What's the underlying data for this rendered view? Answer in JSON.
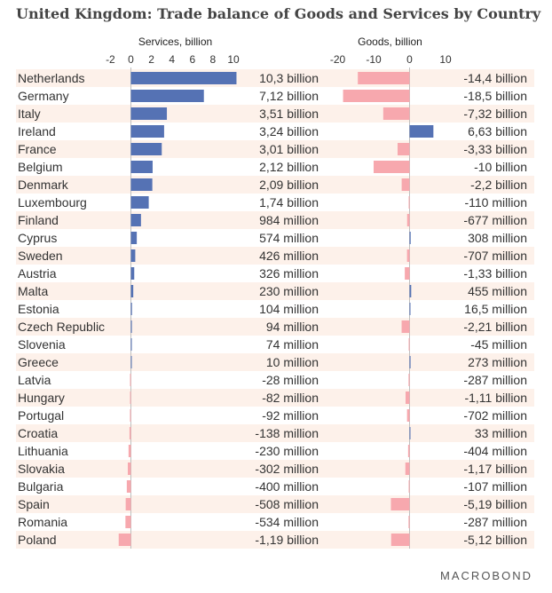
{
  "title": "United Kingdom: Trade balance of Goods and Services by Country",
  "brand": "MACROBOND",
  "colors": {
    "services": "#5572b4",
    "goods": "#f7a8ae",
    "row_band": "#fdf1ea",
    "axis": "#bfbfbf"
  },
  "chart_data": [
    {
      "type": "bar",
      "orientation": "horizontal",
      "title": "Services, billion",
      "xlim": [
        -2.5,
        11
      ],
      "ticks": [
        -2,
        0,
        2,
        4,
        6,
        8,
        10
      ],
      "categories": [
        "Netherlands",
        "Germany",
        "Italy",
        "Ireland",
        "France",
        "Belgium",
        "Denmark",
        "Luxembourg",
        "Finland",
        "Cyprus",
        "Sweden",
        "Austria",
        "Malta",
        "Estonia",
        "Czech Republic",
        "Slovenia",
        "Greece",
        "Latvia",
        "Hungary",
        "Portugal",
        "Croatia",
        "Lithuania",
        "Slovakia",
        "Bulgaria",
        "Spain",
        "Romania",
        "Poland"
      ],
      "values": [
        10.3,
        7.12,
        3.51,
        3.24,
        3.01,
        2.12,
        2.09,
        1.74,
        0.984,
        0.574,
        0.426,
        0.326,
        0.23,
        0.104,
        0.094,
        0.074,
        0.01,
        -0.028,
        -0.082,
        -0.092,
        -0.138,
        -0.23,
        -0.302,
        -0.4,
        -0.508,
        -0.534,
        -1.19
      ],
      "labels": [
        "10,3 billion",
        "7,12 billion",
        "3,51 billion",
        "3,24 billion",
        "3,01 billion",
        "2,12 billion",
        "2,09 billion",
        "1,74 billion",
        "984 million",
        "574 million",
        "426 million",
        "326 million",
        "230 million",
        "104 million",
        "94 million",
        "74 million",
        "10 million",
        "-28 million",
        "-82 million",
        "-92 million",
        "-138 million",
        "-230 million",
        "-302 million",
        "-400 million",
        "-508 million",
        "-534 million",
        "-1,19 billion"
      ]
    },
    {
      "type": "bar",
      "orientation": "horizontal",
      "title": "Goods, billion",
      "xlim": [
        -20.5,
        10
      ],
      "ticks": [
        -20,
        -10,
        0,
        10
      ],
      "categories": [
        "Netherlands",
        "Germany",
        "Italy",
        "Ireland",
        "France",
        "Belgium",
        "Denmark",
        "Luxembourg",
        "Finland",
        "Cyprus",
        "Sweden",
        "Austria",
        "Malta",
        "Estonia",
        "Czech Republic",
        "Slovenia",
        "Greece",
        "Latvia",
        "Hungary",
        "Portugal",
        "Croatia",
        "Lithuania",
        "Slovakia",
        "Bulgaria",
        "Spain",
        "Romania",
        "Poland"
      ],
      "values": [
        -14.4,
        -18.5,
        -7.32,
        6.63,
        -3.33,
        -10,
        -2.2,
        -0.11,
        -0.677,
        0.308,
        -0.707,
        -1.33,
        0.455,
        0.0165,
        -2.21,
        -0.045,
        0.273,
        -0.287,
        -1.11,
        -0.702,
        0.033,
        -0.404,
        -1.17,
        -0.107,
        -5.19,
        -0.287,
        -5.12
      ],
      "labels": [
        "-14,4 billion",
        "-18,5 billion",
        "-7,32 billion",
        "6,63 billion",
        "-3,33 billion",
        "-10 billion",
        "-2,2 billion",
        "-110 million",
        "-677 million",
        "308 million",
        "-707 million",
        "-1,33 billion",
        "455 million",
        "16,5 million",
        "-2,21 billion",
        "-45 million",
        "273 million",
        "-287 million",
        "-1,11 billion",
        "-702 million",
        "33 million",
        "-404 million",
        "-1,17 billion",
        "-107 million",
        "-5,19 billion",
        "-287 million",
        "-5,12 billion"
      ]
    }
  ]
}
